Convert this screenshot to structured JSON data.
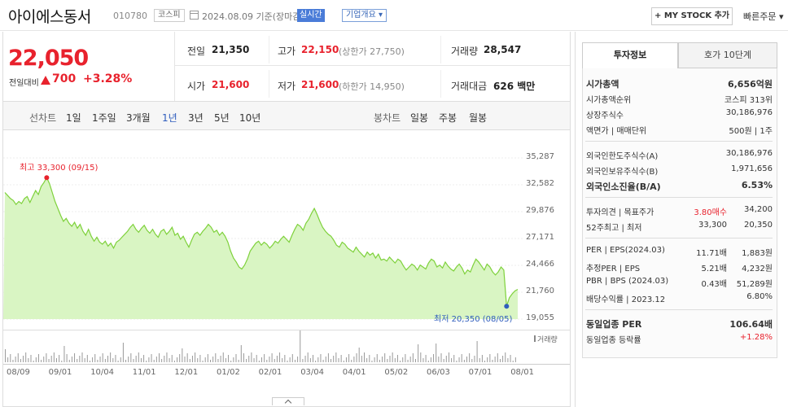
{
  "header": {
    "name": "아이에스동서",
    "code": "010780",
    "market": "코스피",
    "date": "2024.08.09 기준(장마감)",
    "realtime": "실시간",
    "corp_info": "기업개요",
    "mystock": "+ MY STOCK 추가",
    "quick_order": "빠른주문"
  },
  "quote": {
    "price": "22,050",
    "change_label": "전일대비",
    "change": "700",
    "change_pct": "+3.28%",
    "prev_close_label": "전일",
    "prev_close": "21,350",
    "high_label": "고가",
    "high": "22,150",
    "upper_limit": "(상한가 27,750)",
    "volume_label": "거래량",
    "volume": "28,547",
    "open_label": "시가",
    "open": "21,600",
    "low_label": "저가",
    "low": "21,600",
    "lower_limit": "(하한가 14,950)",
    "amount_label": "거래대금",
    "amount": "626 백만"
  },
  "tabs": {
    "line_label": "선차트",
    "periods": [
      "1일",
      "1주일",
      "3개월",
      "1년",
      "3년",
      "5년",
      "10년"
    ],
    "selected": "1년",
    "candle_label": "봉차트",
    "candles": [
      "일봉",
      "주봉",
      "월봉"
    ]
  },
  "chart_data": {
    "type": "area",
    "y_ticks": [
      "35,287",
      "32,582",
      "29,876",
      "27,171",
      "24,466",
      "21,760",
      "19,055"
    ],
    "ylim": [
      19055,
      35287
    ],
    "x_labels": [
      "08/09",
      "09/01",
      "10/04",
      "11/01",
      "12/01",
      "01/02",
      "02/01",
      "03/04",
      "04/01",
      "05/02",
      "06/03",
      "07/01",
      "08/01"
    ],
    "high_annotation": "최고 33,300 (09/15)",
    "low_annotation": "최저 20,350 (08/05)",
    "volume_label": "거래량",
    "line_color": "#7ed13b",
    "fill_color": "#d9f5c3",
    "series": [
      {
        "values": [
          31800,
          31500,
          31200,
          31000,
          30600,
          30900,
          30700,
          31200,
          31400,
          30800,
          31400,
          32000,
          31600,
          32400,
          32800,
          33300,
          32700,
          31800,
          30900,
          30200,
          29500,
          28900,
          29200,
          28700,
          28400,
          28800,
          28200,
          28600,
          27900,
          27500,
          28100,
          27400,
          26900,
          27300,
          26800,
          26600,
          26900,
          26400,
          26700,
          26200,
          26800,
          27000,
          27300,
          27600,
          27900,
          28300,
          28600,
          28100,
          27800,
          28200,
          28500,
          28000,
          27700,
          28100,
          27600,
          27300,
          27900,
          28100,
          27600,
          27900,
          28300,
          27500,
          27700,
          27100,
          27400,
          26800,
          26300,
          27000,
          27600,
          27800,
          27500,
          27900,
          28200,
          28600,
          28300,
          27800,
          28000,
          27500,
          27800,
          27400,
          26800,
          25900,
          25200,
          24800,
          24300,
          24100,
          24500,
          25100,
          25900,
          26300,
          26700,
          26900,
          26500,
          26800,
          26600,
          26200,
          26500,
          26900,
          26700,
          27100,
          27400,
          27100,
          26800,
          27500,
          28100,
          28600,
          28400,
          28000,
          28700,
          29100,
          29700,
          30200,
          29600,
          28900,
          28300,
          27900,
          27600,
          27400,
          27000,
          26500,
          26300,
          26800,
          26600,
          26200,
          26000,
          25800,
          26300,
          25900,
          25600,
          25300,
          25800,
          25500,
          25700,
          25200,
          25600,
          25000,
          25100,
          24900,
          25300,
          25000,
          24700,
          25100,
          24900,
          24400,
          24000,
          24300,
          24600,
          24400,
          24000,
          24500,
          24300,
          24100,
          24700,
          25100,
          24900,
          24300,
          24500,
          24200,
          24800,
          24400,
          24100,
          23900,
          24300,
          24600,
          24200,
          23600,
          24000,
          23800,
          24500,
          25100,
          24800,
          24400,
          24000,
          24600,
          24300,
          23800,
          23500,
          23800,
          24300,
          24000,
          20350,
          21200,
          21600,
          21900,
          22050
        ]
      }
    ]
  },
  "invest": {
    "tab_active": "투자정보",
    "tab_other": "호가 10단계",
    "rows1": [
      {
        "k": "시가총액",
        "v": "6,656억원",
        "bold": true
      },
      {
        "k": "시가총액순위",
        "v": "코스피 313위"
      },
      {
        "k": "상장주식수",
        "v": "30,186,976"
      },
      {
        "k": "액면가 | 매매단위",
        "v": "500원 | 1주"
      }
    ],
    "rows2": [
      {
        "k": "외국인한도주식수(A)",
        "v": "30,186,976"
      },
      {
        "k": "외국인보유주식수(B)",
        "v": "1,971,656"
      },
      {
        "k": "외국인소진율(B/A)",
        "v": "6.53%",
        "bold": true
      }
    ],
    "rows3": [
      {
        "k": "투자의견 | 목표주가",
        "v1": "3.80매수",
        "v": "34,200"
      },
      {
        "k": "52주최고 | 최저",
        "v1": "33,300",
        "v": "20,350"
      }
    ],
    "rows4": [
      {
        "k": "PER | EPS(2024.03)",
        "v1": "11.71배",
        "v": "1,883원"
      },
      {
        "k": "추정PER | EPS",
        "v1": "5.21배",
        "v": "4,232원"
      },
      {
        "k": "PBR | BPS (2024.03)",
        "v1": "0.43배",
        "v": "51,289원"
      },
      {
        "k": "배당수익률 | 2023.12",
        "v1": "",
        "v": "6.80%"
      }
    ],
    "rows5": [
      {
        "k": "동일업종 PER",
        "v": "106.64배",
        "bold": true
      },
      {
        "k": "동일업종 등락률",
        "v": "+1.28%"
      }
    ]
  }
}
